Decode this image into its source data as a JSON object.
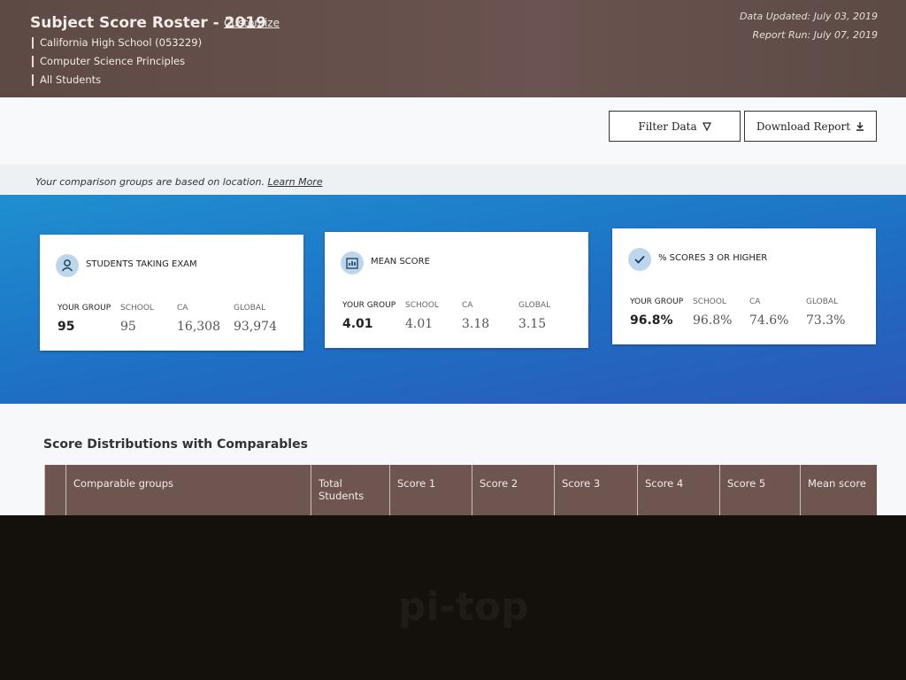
{
  "header": {
    "title": "Subject Score Roster - 2019",
    "customize": "Customize",
    "filters": [
      "California High School (053229)",
      "Computer Science Principles",
      "All Students"
    ],
    "data_updated": "Data Updated: July 03, 2019",
    "report_run": "Report Run: July 07, 2019"
  },
  "toolbar": {
    "buttons": [
      "Filter Data",
      "Download Report"
    ]
  },
  "notice": {
    "text": "Your comparison groups are based on location.",
    "link": "Learn More"
  },
  "cards": [
    {
      "title": "STUDENTS TAKING EXAM",
      "columns": [
        {
          "label": "YOUR GROUP",
          "value": "95"
        },
        {
          "label": "SCHOOL",
          "value": "95"
        },
        {
          "label": "CA",
          "value": "16,308"
        },
        {
          "label": "GLOBAL",
          "value": "93,974"
        }
      ]
    },
    {
      "title": "MEAN SCORE",
      "columns": [
        {
          "label": "YOUR GROUP",
          "value": "4.01"
        },
        {
          "label": "SCHOOL",
          "value": "4.01"
        },
        {
          "label": "CA",
          "value": "3.18"
        },
        {
          "label": "GLOBAL",
          "value": "3.15"
        }
      ]
    },
    {
      "title": "% SCORES 3 OR HIGHER",
      "columns": [
        {
          "label": "YOUR GROUP",
          "value": "96.8%"
        },
        {
          "label": "SCHOOL",
          "value": "96.8%"
        },
        {
          "label": "CA",
          "value": "74.6%"
        },
        {
          "label": "GLOBAL",
          "value": "73.3%"
        }
      ]
    }
  ],
  "table": {
    "title": "Score Distributions with Comparables",
    "headers": [
      "Comparable groups",
      "Total Students",
      "Score 1",
      "Score 2",
      "Score 3",
      "Score 4",
      "Score 5",
      "Mean score"
    ]
  },
  "bezel": {
    "logo": "pi-top"
  }
}
